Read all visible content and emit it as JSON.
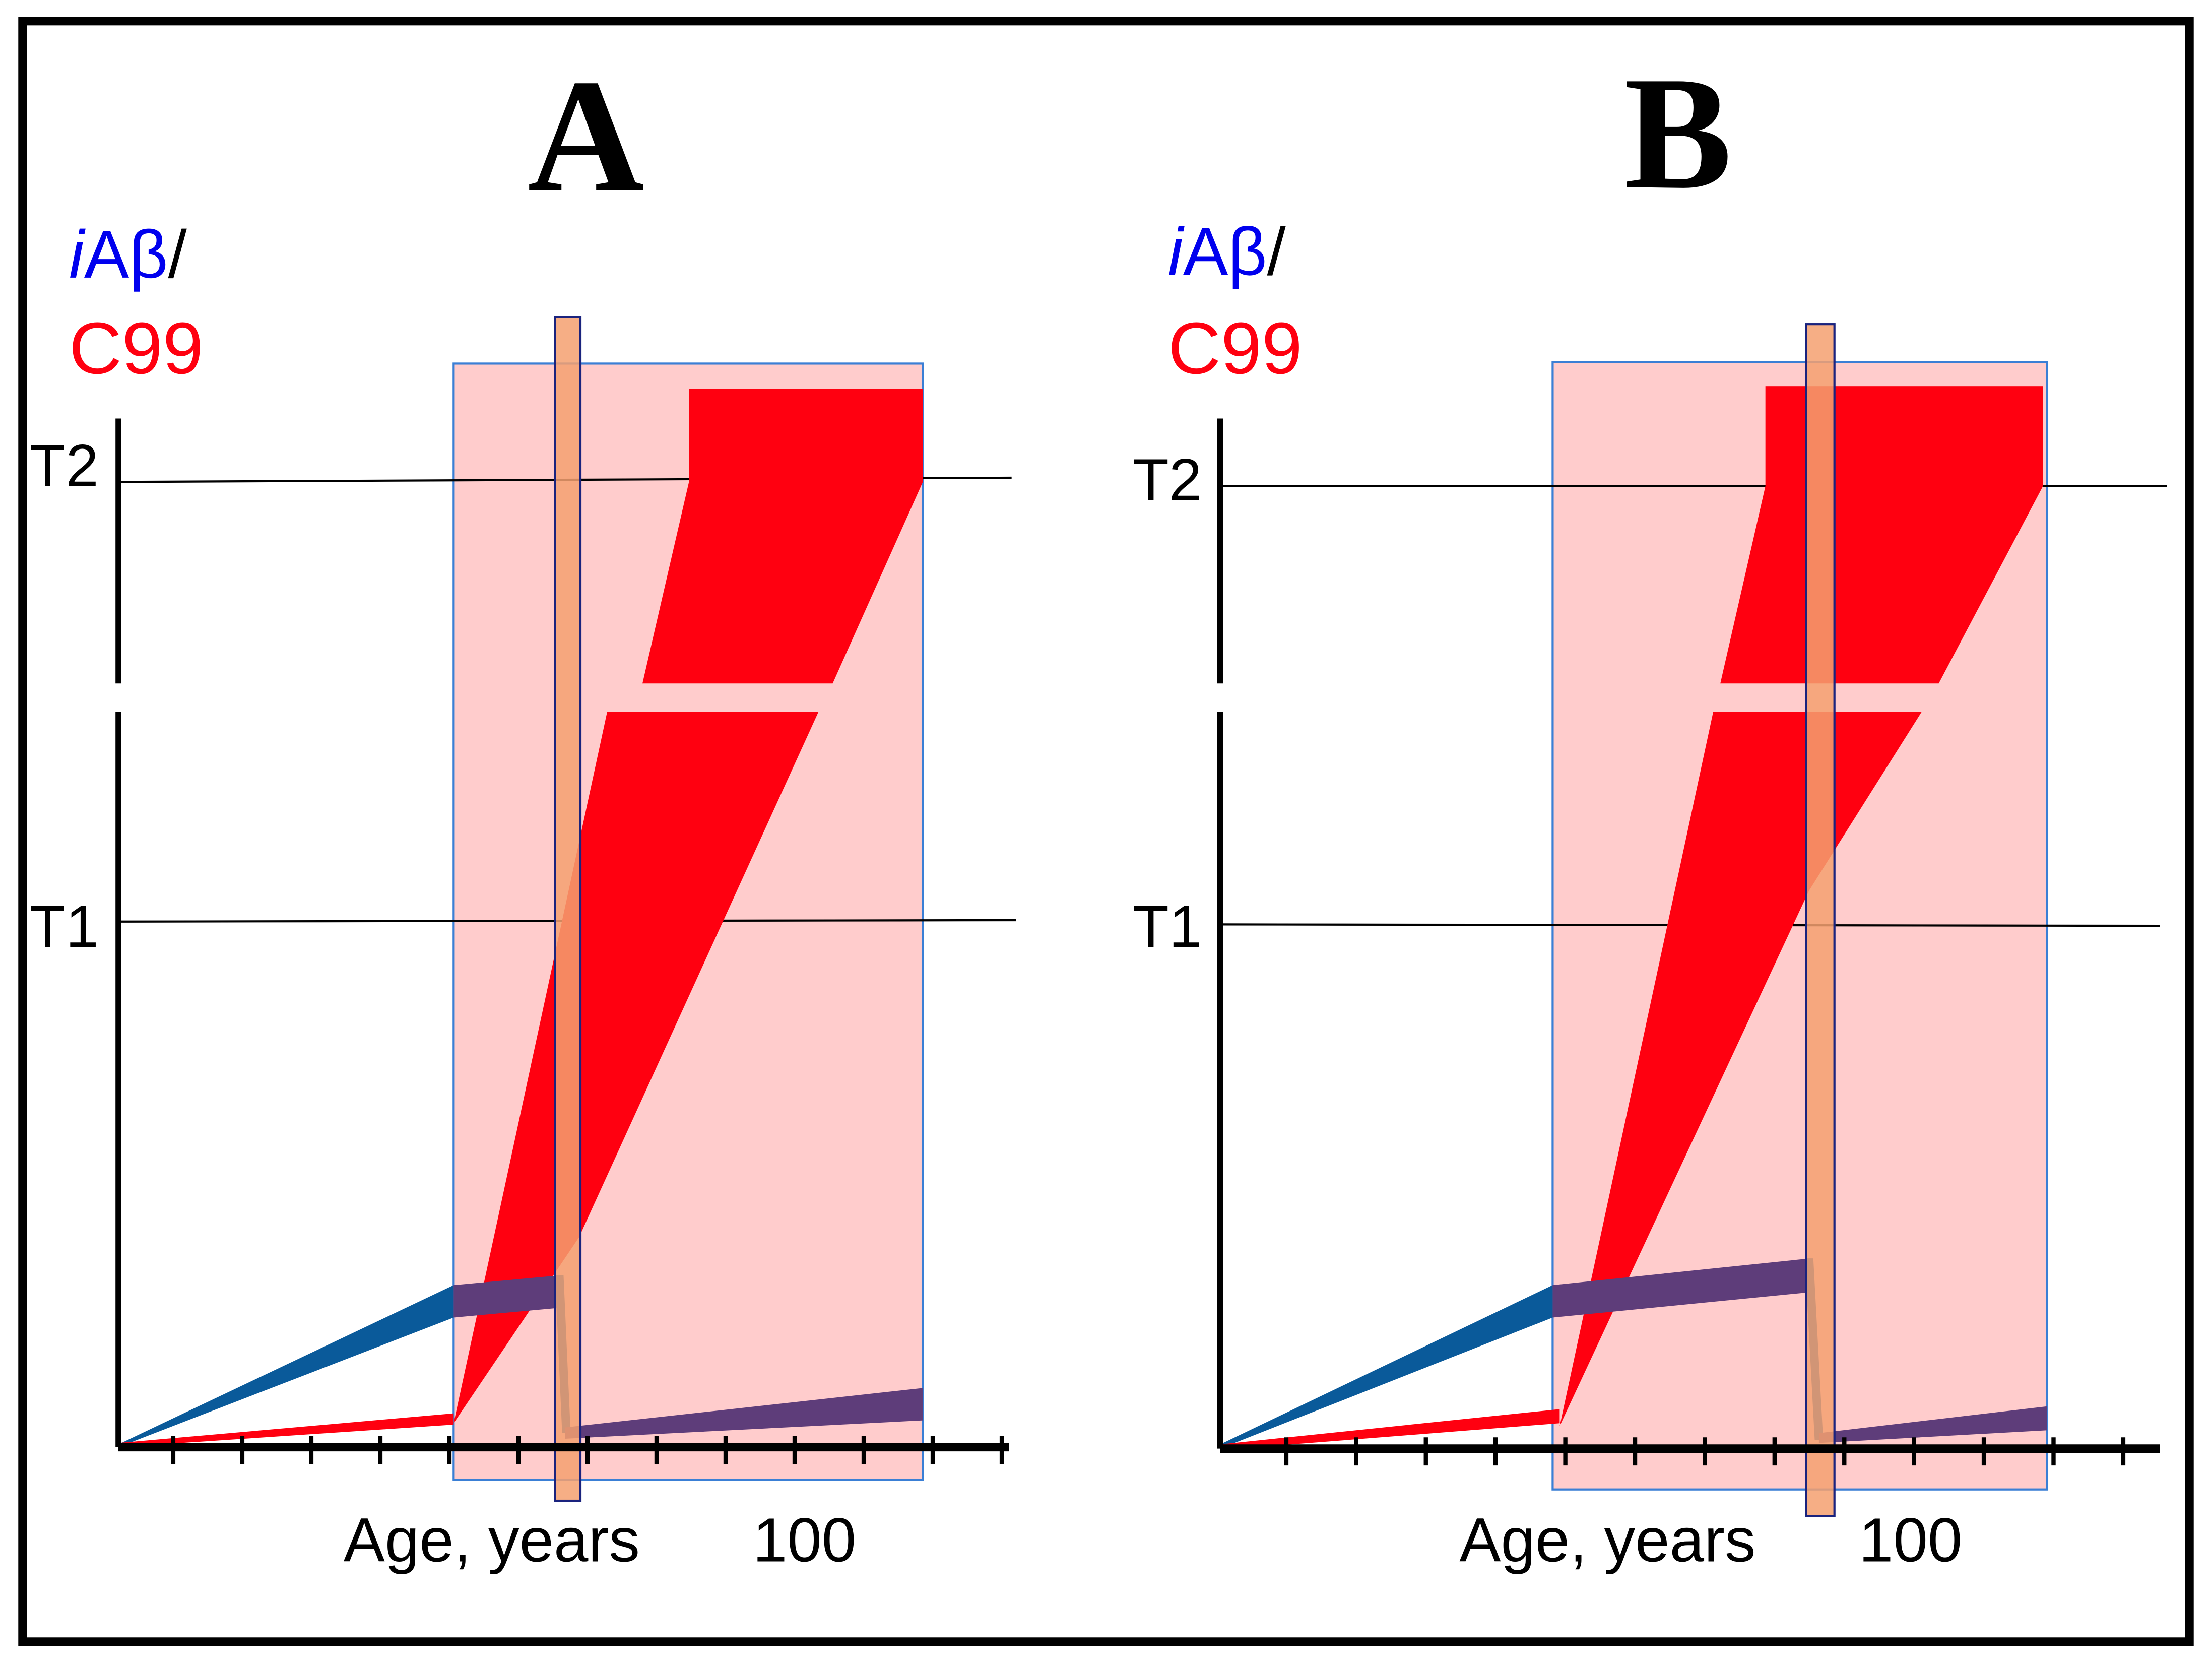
{
  "panels": [
    {
      "title": "A",
      "ylabel_part1_italic": "i",
      "ylabel_part1": "Aβ",
      "ylabel_slash": "/",
      "ylabel_part2": "C99",
      "threshold_upper": "T2",
      "threshold_lower": "T1",
      "xlabel": "Age, years",
      "xtick_label": "100"
    },
    {
      "title": "B",
      "ylabel_part1_italic": "i",
      "ylabel_part1": "Aβ",
      "ylabel_slash": "/",
      "ylabel_part2": "C99",
      "threshold_upper": "T2",
      "threshold_lower": "T1",
      "xlabel": "Age, years",
      "xtick_label": "100"
    }
  ],
  "colors": {
    "iAb": "#0a5a9a",
    "c99": "#ff0010",
    "window": "#ffcccc",
    "intervention": "#f4a070",
    "mixed": "#5e3d7a"
  }
}
